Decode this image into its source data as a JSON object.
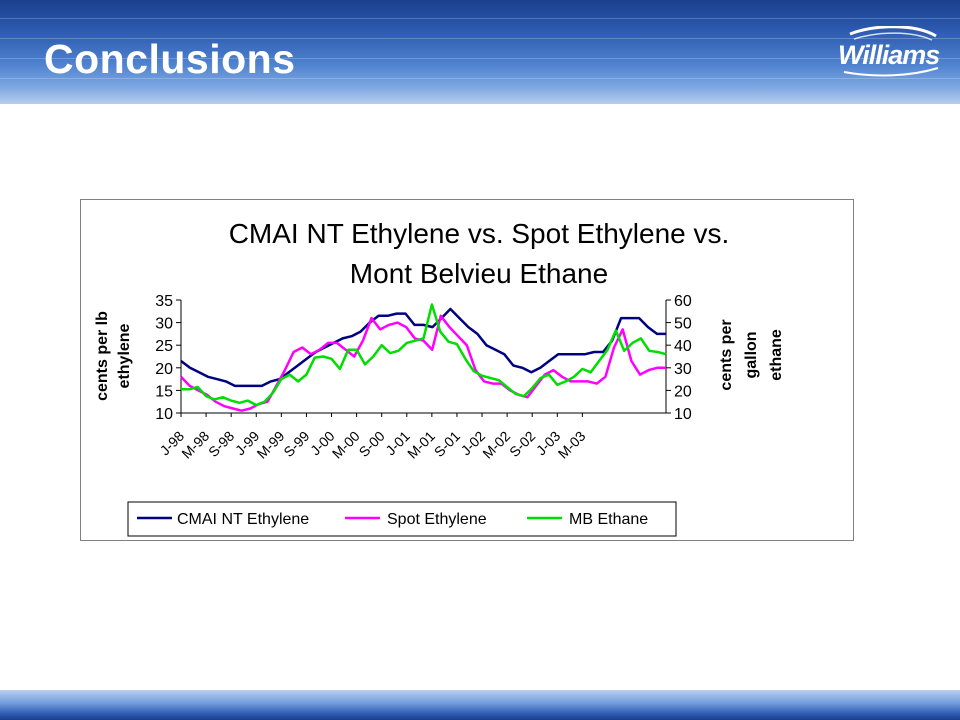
{
  "page": {
    "title": "Conclusions",
    "brand": "Williams"
  },
  "colors": {
    "header_dark": "#1b3f8e",
    "header_light": "#7ea8e2",
    "series_cmai": "#000080",
    "series_spot": "#ff00ff",
    "series_ethane": "#00dd00"
  },
  "chart_data": {
    "type": "line",
    "title_lines": [
      "CMAI NT Ethylene vs. Spot Ethylene vs.",
      "Mont Belvieu Ethane"
    ],
    "ylabel_left": [
      "cents per lb",
      "ethylene"
    ],
    "ylabel_right": [
      "cents per",
      "gallon",
      "ethane"
    ],
    "ylim_left": [
      10,
      35
    ],
    "yticks_left": [
      "35",
      "30",
      "25",
      "20",
      "15",
      "10"
    ],
    "ylim_right": [
      10,
      60
    ],
    "yticks_right": [
      "60",
      "50",
      "40",
      "30",
      "20",
      "10"
    ],
    "xtick_labels": [
      "J-98",
      "M-98",
      "S-98",
      "J-99",
      "M-99",
      "S-99",
      "J-00",
      "M-00",
      "S-00",
      "J-01",
      "M-01",
      "S-01",
      "J-02",
      "M-02",
      "S-02",
      "J-03",
      "M-03"
    ],
    "legend_position": "bottom",
    "grid": false,
    "series": [
      {
        "name": "CMAI NT Ethylene",
        "axis": "left",
        "values": [
          21.5,
          20,
          19,
          18,
          17.5,
          17,
          16,
          16,
          16,
          16,
          17,
          17.5,
          19,
          20.5,
          22,
          23.5,
          24.5,
          25.5,
          26.5,
          27,
          28,
          30,
          31.5,
          31.5,
          32,
          32,
          29.5,
          29.5,
          29,
          31,
          33,
          31,
          29,
          27.5,
          25,
          24,
          23,
          20.5,
          20,
          19,
          20,
          21.5,
          23,
          23,
          23,
          23,
          23.5,
          23.5,
          26,
          31,
          31,
          31,
          29,
          27.5,
          27.5
        ]
      },
      {
        "name": "Spot Ethylene",
        "axis": "left",
        "values": [
          18,
          16,
          15,
          14,
          12.5,
          11.5,
          11,
          10.5,
          11,
          12,
          12.5,
          16,
          19.5,
          23.5,
          24.5,
          23,
          24,
          25.5,
          25.5,
          24,
          22.5,
          26,
          31,
          28.5,
          29.5,
          30,
          29,
          26.5,
          26,
          24,
          31.5,
          29,
          27,
          25,
          19.5,
          17,
          16.5,
          16.5,
          15,
          14,
          13.5,
          16,
          18.5,
          19.5,
          18,
          17,
          17,
          17,
          16.5,
          18,
          24.5,
          28.5,
          21.5,
          18.5,
          19.5,
          20,
          20
        ]
      },
      {
        "name": "MB Ethane",
        "axis": "right",
        "values": [
          20.5,
          20.5,
          21.5,
          17.5,
          16,
          17,
          15.5,
          14.5,
          15.5,
          13.5,
          15,
          19,
          25,
          27,
          24,
          27,
          34.5,
          35,
          34,
          29.5,
          38,
          38,
          31.5,
          35,
          40,
          36.5,
          37.5,
          41,
          42,
          43,
          58,
          46,
          41.5,
          40.5,
          34,
          28.5,
          26.5,
          25.5,
          24.5,
          21.5,
          18.5,
          17.5,
          21,
          25.5,
          27,
          22.5,
          24,
          26,
          29.5,
          28,
          33,
          38,
          46.5,
          37.5,
          41,
          43,
          37.5,
          37,
          36
        ]
      }
    ]
  }
}
